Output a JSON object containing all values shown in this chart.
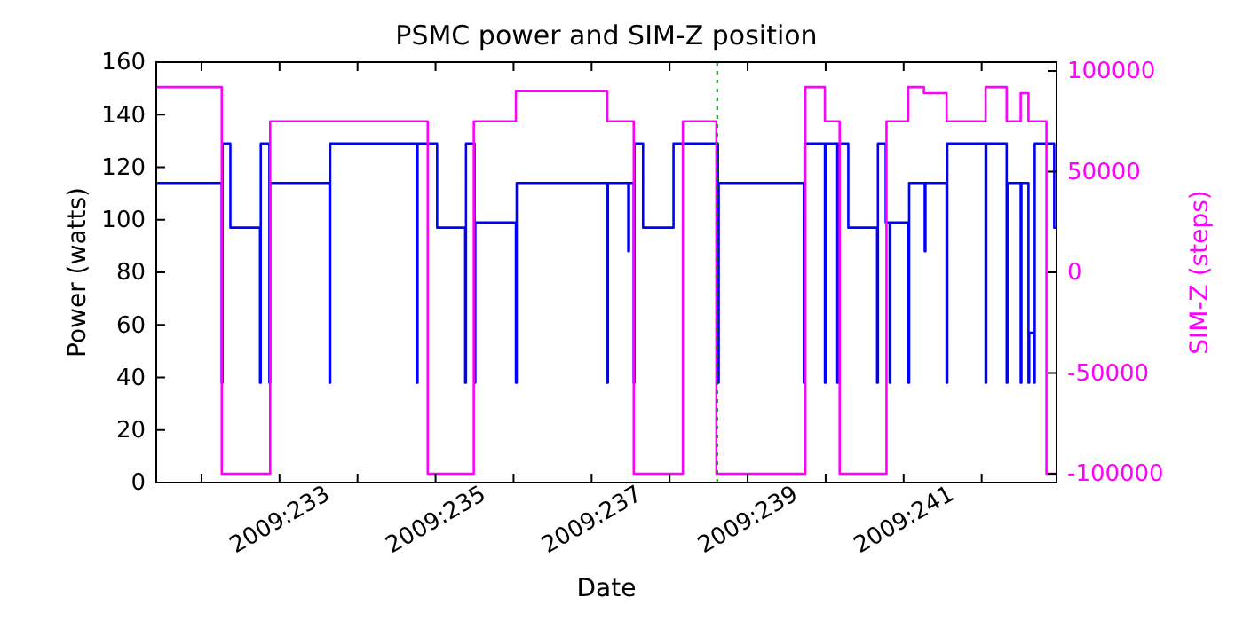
{
  "chart_data": {
    "type": "step",
    "title": "PSMC power and SIM-Z position",
    "xlabel": "Date",
    "ylabel": "Power (watts)",
    "y2label": "SIM-Z (steps)",
    "xlim": [
      "2009-08-19T10:05",
      "2009-08-30T23:02"
    ],
    "xticks": [
      {
        "value": "2009-08-20",
        "label": null
      },
      {
        "value": "2009-08-21",
        "label": "2009:233"
      },
      {
        "value": "2009-08-22",
        "label": null
      },
      {
        "value": "2009-08-23",
        "label": "2009:235"
      },
      {
        "value": "2009-08-24",
        "label": null
      },
      {
        "value": "2009-08-25",
        "label": "2009:237"
      },
      {
        "value": "2009-08-26",
        "label": null
      },
      {
        "value": "2009-08-27",
        "label": "2009:239"
      },
      {
        "value": "2009-08-28",
        "label": null
      },
      {
        "value": "2009-08-29",
        "label": "2009:241"
      },
      {
        "value": "2009-08-30",
        "label": null
      }
    ],
    "ylim": [
      0,
      160
    ],
    "yticks": [
      0,
      20,
      40,
      60,
      80,
      100,
      120,
      140,
      160
    ],
    "y2lim": [
      -104400,
      104400
    ],
    "y2ticks": [
      -100000,
      -50000,
      0,
      50000,
      100000
    ],
    "grid": false,
    "ref_lines": [
      {
        "axis": "x",
        "value": "2009-08-26T14:38",
        "color": "#008000",
        "line_style": "dotted"
      }
    ],
    "series": [
      {
        "color": "#0000ff",
        "x": [
          "2009-08-19T10:05",
          "2009-08-20T06:14",
          "2009-08-20T06:29",
          "2009-08-20T08:53",
          "2009-08-20T18:00",
          "2009-08-20T18:14",
          "2009-08-20T20:53",
          "2009-08-20T21:07",
          "2009-08-21T15:22",
          "2009-08-21T15:36",
          "2009-08-22T18:14",
          "2009-08-22T18:29",
          "2009-08-23T00:29",
          "2009-08-23T09:07",
          "2009-08-23T09:22",
          "2009-08-23T12:00",
          "2009-08-23T12:14",
          "2009-08-24T00:43",
          "2009-08-24T00:58",
          "2009-08-25T04:48",
          "2009-08-25T05:02",
          "2009-08-25T11:17",
          "2009-08-25T11:31",
          "2009-08-25T12:58",
          "2009-08-25T13:12",
          "2009-08-25T15:50",
          "2009-08-26T01:12",
          "2009-08-26T14:53",
          "2009-08-26T15:07",
          "2009-08-27T17:17",
          "2009-08-27T17:31",
          "2009-08-27T23:46",
          "2009-08-28T00:00",
          "2009-08-28T03:36",
          "2009-08-28T03:50",
          "2009-08-28T06:58",
          "2009-08-28T15:50",
          "2009-08-28T16:05",
          "2009-08-28T18:29",
          "2009-08-28T19:41",
          "2009-08-28T19:55",
          "2009-08-29T01:26",
          "2009-08-29T01:41",
          "2009-08-29T06:29",
          "2009-08-29T06:43",
          "2009-08-29T13:12",
          "2009-08-29T13:26",
          "2009-08-30T01:12",
          "2009-08-30T01:26",
          "2009-08-30T07:41",
          "2009-08-30T07:55",
          "2009-08-30T12:00",
          "2009-08-30T12:14",
          "2009-08-30T14:24",
          "2009-08-30T14:38",
          "2009-08-30T16:05",
          "2009-08-30T16:19",
          "2009-08-30T22:19",
          "2009-08-30T23:02"
        ],
        "values": [
          114,
          38,
          129,
          97,
          38,
          129,
          38,
          114,
          38,
          129,
          38,
          129,
          97,
          38,
          129,
          38,
          99,
          38,
          114,
          38,
          114,
          88,
          114,
          38,
          129,
          97,
          129,
          38,
          114,
          38,
          129,
          38,
          129,
          38,
          129,
          97,
          38,
          129,
          99,
          38,
          99,
          38,
          114,
          88,
          114,
          38,
          129,
          38,
          129,
          38,
          114,
          38,
          114,
          38,
          57,
          38,
          129,
          97,
          97
        ]
      },
      {
        "color": "#ff00ff",
        "axis": "y2",
        "x": [
          "2009-08-19T10:05",
          "2009-08-20T06:14",
          "2009-08-20T21:07",
          "2009-08-22T21:36",
          "2009-08-23T11:46",
          "2009-08-24T00:43",
          "2009-08-25T04:48",
          "2009-08-25T12:58",
          "2009-08-26T04:05",
          "2009-08-26T14:24",
          "2009-08-27T17:46",
          "2009-08-27T23:46",
          "2009-08-28T04:19",
          "2009-08-28T18:43",
          "2009-08-29T01:26",
          "2009-08-29T06:14",
          "2009-08-29T13:12",
          "2009-08-30T01:12",
          "2009-08-30T07:41",
          "2009-08-30T12:00",
          "2009-08-30T14:24",
          "2009-08-30T19:55",
          "2009-08-30T23:02"
        ],
        "values": [
          92000,
          -100000,
          75000,
          -100000,
          75000,
          90000,
          75000,
          -100000,
          75000,
          -100000,
          92000,
          75000,
          -100000,
          75000,
          92000,
          89000,
          75000,
          92000,
          75000,
          89000,
          75000,
          -100000,
          -100000
        ]
      }
    ]
  }
}
